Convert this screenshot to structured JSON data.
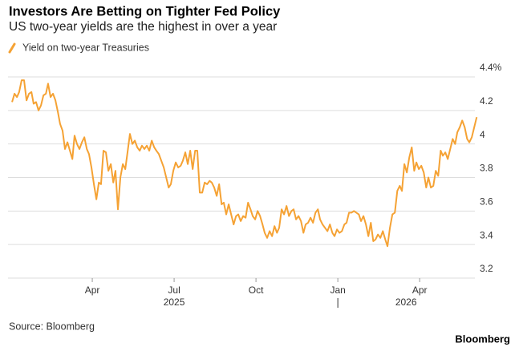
{
  "chart_data": {
    "type": "line",
    "title": "Investors Are Betting on Tighter Fed Policy",
    "subtitle": "US two-year yields are the highest in over a year",
    "legend": "top-left",
    "grid": true,
    "series": [
      {
        "name": "Yield on two-year Treasuries",
        "color": "#f5a234",
        "x": [
          0.06,
          0.15,
          0.24,
          0.32,
          0.41,
          0.5,
          0.59,
          0.68,
          0.77,
          0.85,
          0.94,
          1.03,
          1.12,
          1.21,
          1.3,
          1.38,
          1.47,
          1.56,
          1.65,
          1.74,
          1.82,
          1.91,
          2,
          2.09,
          2.18,
          2.27,
          2.35,
          2.44,
          2.53,
          2.62,
          2.71,
          2.8,
          2.88,
          2.97,
          3.06,
          3.15,
          3.24,
          3.32,
          3.41,
          3.5,
          3.59,
          3.68,
          3.77,
          3.85,
          3.94,
          4.03,
          4.12,
          4.21,
          4.3,
          4.38,
          4.47,
          4.56,
          4.65,
          4.74,
          4.82,
          4.91,
          5,
          5.09,
          5.18,
          5.27,
          5.35,
          5.44,
          5.53,
          5.62,
          5.71,
          5.8,
          5.88,
          5.97,
          6.06,
          6.15,
          6.24,
          6.32,
          6.41,
          6.5,
          6.59,
          6.68,
          6.77,
          6.85,
          6.94,
          7.03,
          7.12,
          7.21,
          7.3,
          7.38,
          7.47,
          7.56,
          7.65,
          7.74,
          7.82,
          7.91,
          8,
          8.09,
          8.18,
          8.27,
          8.35,
          8.44,
          8.53,
          8.62,
          8.71,
          8.8,
          8.88,
          8.97,
          9.06,
          9.15,
          9.24,
          9.32,
          9.41,
          9.5,
          9.59,
          9.68,
          9.77,
          9.85,
          9.94,
          10.03,
          10.12,
          10.21,
          10.3,
          10.38,
          10.47,
          10.56,
          10.65,
          10.74,
          10.82,
          10.91,
          11,
          11.09,
          11.18,
          11.27,
          11.35,
          11.44,
          11.53,
          11.62,
          11.71,
          11.8,
          11.88,
          11.97,
          12.06,
          12.15,
          12.24,
          12.32,
          12.41,
          12.5,
          12.59,
          12.68,
          12.77,
          12.85,
          12.94,
          13.03,
          13.12,
          13.21,
          13.3,
          13.38,
          13.47,
          13.56,
          13.65,
          13.74,
          13.82,
          13.91,
          14,
          14.09,
          14.18,
          14.27,
          14.35,
          14.44,
          14.53,
          14.62,
          14.71,
          14.8,
          14.88,
          14.97,
          15.06,
          15.15,
          15.24,
          15.32,
          15.41,
          15.5,
          15.59,
          15.68,
          15.77,
          15.85,
          15.94,
          16.03,
          16.12,
          16.21,
          16.3,
          16.38,
          16.47,
          16.56,
          16.65,
          16.74,
          16.82,
          16.91,
          17,
          17.09
        ],
        "values": [
          4.25,
          4.3,
          4.28,
          4.31,
          4.38,
          4.38,
          4.26,
          4.3,
          4.31,
          4.24,
          4.25,
          4.2,
          4.23,
          4.29,
          4.3,
          4.36,
          4.28,
          4.3,
          4.26,
          4.19,
          4.12,
          4.08,
          3.97,
          4.01,
          3.96,
          3.91,
          4.05,
          4.0,
          3.97,
          4.01,
          4.04,
          3.97,
          3.94,
          3.86,
          3.76,
          3.67,
          3.77,
          3.76,
          3.96,
          3.95,
          3.84,
          3.88,
          3.77,
          3.84,
          3.61,
          3.8,
          3.88,
          3.85,
          3.96,
          4.06,
          4.0,
          4.02,
          3.98,
          3.96,
          3.99,
          3.97,
          3.99,
          3.96,
          4.02,
          3.98,
          3.96,
          3.94,
          3.9,
          3.86,
          3.8,
          3.74,
          3.76,
          3.84,
          3.89,
          3.86,
          3.87,
          3.9,
          3.95,
          3.88,
          3.96,
          3.85,
          3.96,
          3.96,
          3.71,
          3.71,
          3.77,
          3.76,
          3.78,
          3.77,
          3.74,
          3.69,
          3.76,
          3.64,
          3.65,
          3.58,
          3.64,
          3.58,
          3.52,
          3.57,
          3.58,
          3.54,
          3.57,
          3.56,
          3.65,
          3.61,
          3.57,
          3.55,
          3.6,
          3.57,
          3.52,
          3.47,
          3.44,
          3.48,
          3.45,
          3.51,
          3.47,
          3.5,
          3.61,
          3.58,
          3.63,
          3.57,
          3.6,
          3.61,
          3.55,
          3.57,
          3.54,
          3.47,
          3.52,
          3.53,
          3.56,
          3.53,
          3.59,
          3.61,
          3.55,
          3.52,
          3.5,
          3.48,
          3.52,
          3.47,
          3.45,
          3.49,
          3.47,
          3.48,
          3.52,
          3.53,
          3.59,
          3.59,
          3.6,
          3.59,
          3.58,
          3.54,
          3.57,
          3.52,
          3.45,
          3.53,
          3.42,
          3.43,
          3.46,
          3.44,
          3.48,
          3.43,
          3.39,
          3.5,
          3.58,
          3.59,
          3.72,
          3.75,
          3.72,
          3.88,
          3.83,
          3.92,
          3.98,
          3.84,
          3.89,
          3.85,
          3.87,
          3.83,
          3.74,
          3.8,
          3.74,
          3.75,
          3.84,
          3.81,
          3.96,
          3.93,
          3.95,
          3.91,
          3.97,
          4.03,
          4.0,
          4.07,
          4.1,
          4.14,
          4.1,
          4.03,
          4.01,
          4.04,
          4.1,
          4.16
        ]
      }
    ],
    "xlim": [
      0,
      17.2
    ],
    "xticks": [
      {
        "value": 3,
        "label": "Apr"
      },
      {
        "value": 6,
        "label": "Jul"
      },
      {
        "value": 9,
        "label": "Oct"
      },
      {
        "value": 12,
        "label": "Jan"
      },
      {
        "value": 15,
        "label": "Apr"
      }
    ],
    "x_year_labels": [
      {
        "value": 6,
        "label": "2025"
      },
      {
        "value": 14.5,
        "label": "2026"
      }
    ],
    "ylim": [
      3.2,
      4.4
    ],
    "yticks": [
      3.2,
      3.4,
      3.6,
      3.8,
      4.0,
      {
        "value": 4.2,
        "label": "4.2"
      },
      {
        "value": 4.4,
        "label": "4.4%"
      }
    ],
    "source": "Source: Bloomberg",
    "brand": "Bloomberg"
  }
}
